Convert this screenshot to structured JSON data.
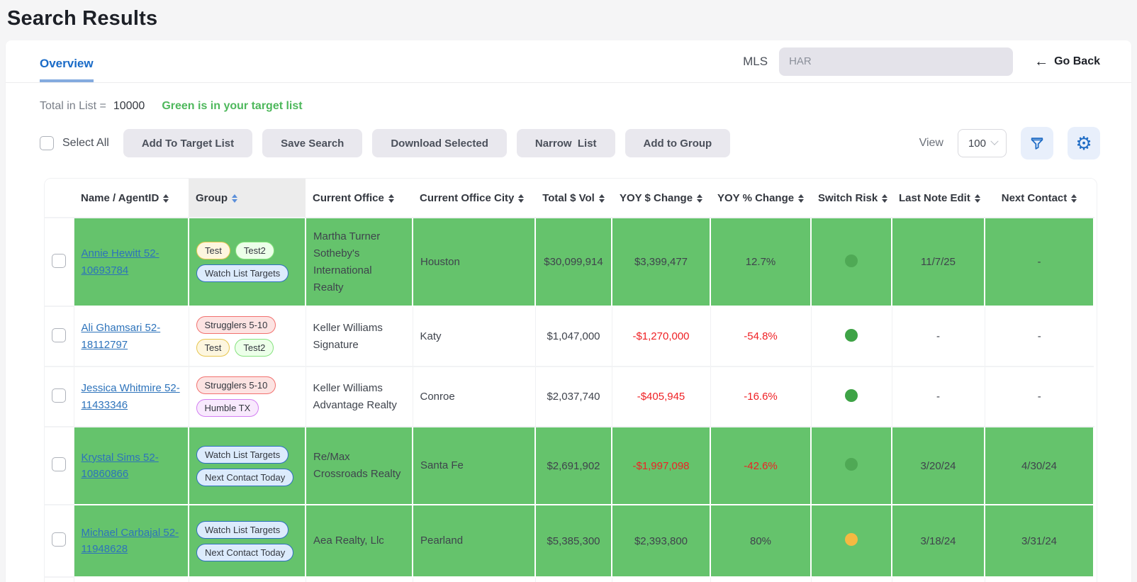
{
  "page": {
    "title": "Search Results"
  },
  "tab": {
    "label": "Overview"
  },
  "mls": {
    "label": "MLS",
    "value": "HAR"
  },
  "go_back": {
    "label": "Go Back",
    "arrow": "←"
  },
  "summary": {
    "total_label": "Total in List =",
    "total_value": "10000",
    "legend": "Green is in your target list"
  },
  "toolbar": {
    "select_all": "Select All",
    "add_to_target": "Add To Target List",
    "save_search": "Save Search",
    "download_selected": "Download Selected",
    "narrow_list": "Narrow  List",
    "add_to_group": "Add to Group",
    "view_label": "View",
    "view_value": "100"
  },
  "table": {
    "columns": [
      "Name / AgentID",
      "Group",
      "Current Office",
      "Current Office City",
      "Total $ Vol",
      "YOY $ Change",
      "YOY % Change",
      "Switch Risk",
      "Last Note Edit",
      "Next Contact"
    ],
    "sorted_column": "Group",
    "rows": [
      {
        "name": "Annie Hewitt 52-10693784",
        "in_target": true,
        "badges": [
          {
            "label": "Test",
            "style": "yellow"
          },
          {
            "label": "Test2",
            "style": "green"
          },
          {
            "label": "Watch List Targets",
            "style": "blue"
          }
        ],
        "office": "Martha Turner Sotheby's International Realty",
        "city": "Houston",
        "total_vol": "$30,099,914",
        "yoy_change": "$3,399,477",
        "yoy_change_negative": false,
        "yoy_pct": "12.7%",
        "yoy_pct_negative": false,
        "switch_risk_color": "#4FA955",
        "last_note_edit": "11/7/25",
        "next_contact": "-"
      },
      {
        "name": "Ali Ghamsari 52-18112797",
        "in_target": false,
        "badges": [
          {
            "label": "Strugglers 5-10",
            "style": "red"
          },
          {
            "label": "Test",
            "style": "yellow"
          },
          {
            "label": "Test2",
            "style": "green"
          }
        ],
        "office": "Keller Williams Signature",
        "city": "Katy",
        "total_vol": "$1,047,000",
        "yoy_change": "-$1,270,000",
        "yoy_change_negative": true,
        "yoy_pct": "-54.8%",
        "yoy_pct_negative": true,
        "switch_risk_color": "#3EA346",
        "last_note_edit": "-",
        "next_contact": "-"
      },
      {
        "name": "Jessica Whitmire 52-11433346",
        "in_target": false,
        "badges": [
          {
            "label": "Strugglers 5-10",
            "style": "red"
          },
          {
            "label": "Humble TX",
            "style": "purple"
          }
        ],
        "office": "Keller Williams Advantage Realty",
        "city": "Conroe",
        "total_vol": "$2,037,740",
        "yoy_change": "-$405,945",
        "yoy_change_negative": true,
        "yoy_pct": "-16.6%",
        "yoy_pct_negative": true,
        "switch_risk_color": "#3EA346",
        "last_note_edit": "-",
        "next_contact": "-"
      },
      {
        "name": "Krystal Sims 52-10860866",
        "in_target": true,
        "badges": [
          {
            "label": "Watch List Targets",
            "style": "blue"
          },
          {
            "label": "Next Contact Today",
            "style": "blue"
          }
        ],
        "office": "Re/Max Crossroads Realty",
        "city": "Santa Fe",
        "total_vol": "$2,691,902",
        "yoy_change": "-$1,997,098",
        "yoy_change_negative": true,
        "yoy_pct": "-42.6%",
        "yoy_pct_negative": true,
        "switch_risk_color": "#4FA955",
        "last_note_edit": "3/20/24",
        "next_contact": "4/30/24"
      },
      {
        "name": "Michael Carbajal 52-11948628",
        "in_target": true,
        "badges": [
          {
            "label": "Watch List Targets",
            "style": "blue"
          },
          {
            "label": "Next Contact Today",
            "style": "blue"
          }
        ],
        "office": "Aea Realty, Llc",
        "city": "Pearland",
        "total_vol": "$5,385,300",
        "yoy_change": "$2,393,800",
        "yoy_change_negative": false,
        "yoy_pct": "80%",
        "yoy_pct_negative": false,
        "switch_risk_color": "#F5B942",
        "last_note_edit": "3/18/24",
        "next_contact": "3/31/24"
      }
    ]
  },
  "colors": {
    "target_row_green": "#65C36C",
    "negative_red": "#EF2125",
    "accent_blue": "#1F6CC5",
    "legend_green": "#4EB85C"
  }
}
